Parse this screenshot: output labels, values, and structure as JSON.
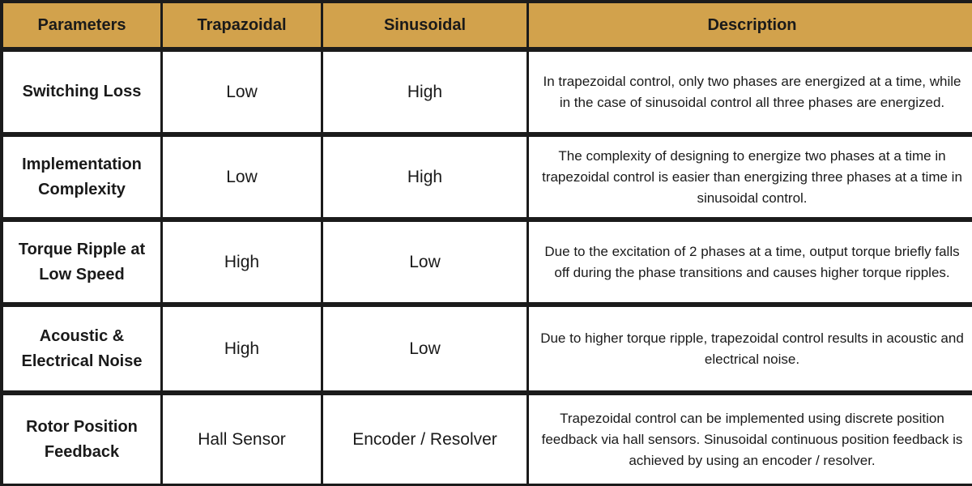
{
  "table": {
    "headers": [
      "Parameters",
      "Trapazoidal",
      "Sinusoidal",
      "Description"
    ],
    "rows": [
      {
        "parameter": "Switching Loss",
        "trapazoidal": "Low",
        "sinusoidal": "High",
        "description": "In trapezoidal control, only two phases are energized at a time, while in the case of sinusoidal control all three phases are energized."
      },
      {
        "parameter": "Implementation Complexity",
        "trapazoidal": "Low",
        "sinusoidal": "High",
        "description": "The complexity of designing to energize two phases at a time in trapezoidal control is easier than energizing three phases at a time in sinusoidal control."
      },
      {
        "parameter": "Torque Ripple at Low Speed",
        "trapazoidal": "High",
        "sinusoidal": "Low",
        "description": "Due to the excitation of 2 phases at a time, output torque briefly falls off during the phase transitions and causes higher torque ripples."
      },
      {
        "parameter": "Acoustic & Electrical Noise",
        "trapazoidal": "High",
        "sinusoidal": "Low",
        "description": "Due to higher torque ripple, trapezoidal control results in acoustic and electrical noise."
      },
      {
        "parameter": "Rotor Position Feedback",
        "trapazoidal": "Hall Sensor",
        "sinusoidal": "Encoder / Resolver",
        "description": "Trapezoidal control can be implemented using discrete position feedback via hall sensors. Sinusoidal continuous position feedback is achieved by using an encoder / resolver."
      }
    ]
  },
  "colors": {
    "header_bg": "#d2a24c",
    "grid_lines": "#1b1b1b",
    "cell_bg": "#ffffff",
    "text": "#1a1a1a"
  }
}
